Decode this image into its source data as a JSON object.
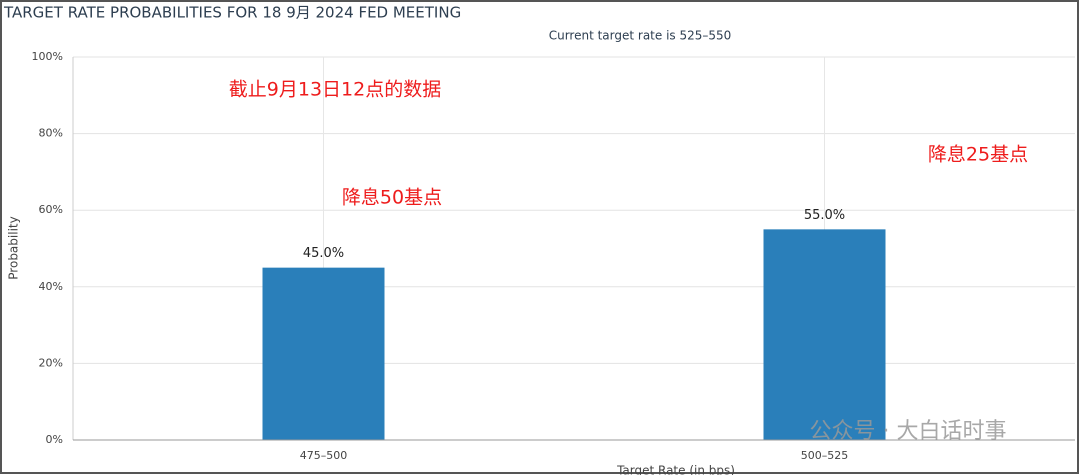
{
  "chart_data": {
    "type": "bar",
    "title": "TARGET RATE PROBABILITIES FOR 18 9月 2024 FED MEETING",
    "subtitle": "Current target rate is 525–550",
    "x_label": "Target Rate (in bps)",
    "y_label": "Probability",
    "categories": [
      "475–500",
      "500–525"
    ],
    "values": [
      45,
      55
    ],
    "value_labels": [
      "45.0%",
      "55.0%"
    ],
    "color": "#2a7fba",
    "ylim": [
      0,
      100
    ],
    "yticks": [
      {
        "value": 0,
        "label": "0%"
      },
      {
        "value": 20,
        "label": "20%"
      },
      {
        "value": 40,
        "label": "40%"
      },
      {
        "value": 60,
        "label": "60%"
      },
      {
        "value": 80,
        "label": "80%"
      },
      {
        "value": 100,
        "label": "100%"
      }
    ],
    "grid": true,
    "annotations": [
      "截止9月13日12点的数据",
      "降息50基点",
      "降息25基点"
    ],
    "watermark": "公众号 · 大白话时事"
  }
}
